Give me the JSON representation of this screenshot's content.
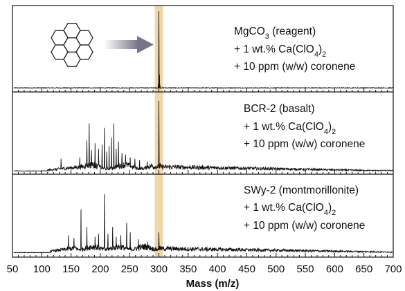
{
  "chart_data": {
    "type": "line",
    "xlabel": "Mass (m/z)",
    "xlim": [
      50,
      700
    ],
    "x_ticks": [
      "50",
      "100",
      "150",
      "200",
      "250",
      "300",
      "350",
      "400",
      "450",
      "500",
      "550",
      "600",
      "650",
      "700"
    ],
    "highlight_band": {
      "x_range": [
        293,
        307
      ],
      "color": "#efd7a8"
    },
    "colors": {
      "line": "#111111",
      "arrow": "#7a7488"
    },
    "inset_icon": "coronene-molecule-icon",
    "panels": [
      {
        "name": "MgCO3 (reagent)",
        "label": {
          "pre": "MgCO",
          "sub": "3",
          "post": " (reagent)"
        },
        "additives": [
          {
            "pre": "+ 1 wt.% Ca(ClO",
            "sub": "4",
            "post": ")",
            "sub2": "2"
          },
          {
            "text": "+ 10 ppm (w/w) coronene"
          }
        ],
        "peaks": [
          [
            300,
            100
          ],
          [
            301,
            18
          ],
          [
            299,
            6
          ],
          [
            302,
            4
          ]
        ]
      },
      {
        "name": "BCR-2 (basalt)",
        "label": {
          "pre": "BCR-2 (basalt)",
          "sub": "",
          "post": ""
        },
        "additives": [
          {
            "pre": "+ 1 wt.% Ca(ClO",
            "sub": "4",
            "post": ")",
            "sub2": "2"
          },
          {
            "text": "+ 10 ppm (w/w) coronene"
          }
        ],
        "peaks": [
          [
            133,
            18
          ],
          [
            165,
            20
          ],
          [
            177,
            44
          ],
          [
            181,
            68
          ],
          [
            185,
            30
          ],
          [
            191,
            40
          ],
          [
            197,
            32
          ],
          [
            203,
            38
          ],
          [
            207,
            62
          ],
          [
            211,
            28
          ],
          [
            215,
            36
          ],
          [
            219,
            48
          ],
          [
            223,
            68
          ],
          [
            227,
            32
          ],
          [
            231,
            42
          ],
          [
            237,
            26
          ],
          [
            243,
            24
          ],
          [
            251,
            20
          ],
          [
            259,
            18
          ],
          [
            267,
            16
          ],
          [
            280,
            14
          ],
          [
            300,
            100
          ],
          [
            302,
            12
          ]
        ]
      },
      {
        "name": "SWy-2 (montmorillonite)",
        "label": {
          "pre": "SWy-2 (montmorillonite)",
          "sub": "",
          "post": ""
        },
        "additives": [
          {
            "pre": "+ 1 wt.% Ca(ClO",
            "sub": "4",
            "post": ")",
            "sub2": "2"
          },
          {
            "text": "+ 10 ppm (w/w) coronene"
          }
        ],
        "peaks": [
          [
            146,
            26
          ],
          [
            155,
            22
          ],
          [
            167,
            64
          ],
          [
            177,
            38
          ],
          [
            191,
            24
          ],
          [
            197,
            28
          ],
          [
            207,
            86
          ],
          [
            213,
            28
          ],
          [
            221,
            38
          ],
          [
            227,
            24
          ],
          [
            235,
            26
          ],
          [
            245,
            44
          ],
          [
            251,
            30
          ],
          [
            265,
            20
          ],
          [
            281,
            16
          ],
          [
            300,
            30
          ],
          [
            302,
            10
          ]
        ]
      }
    ]
  }
}
